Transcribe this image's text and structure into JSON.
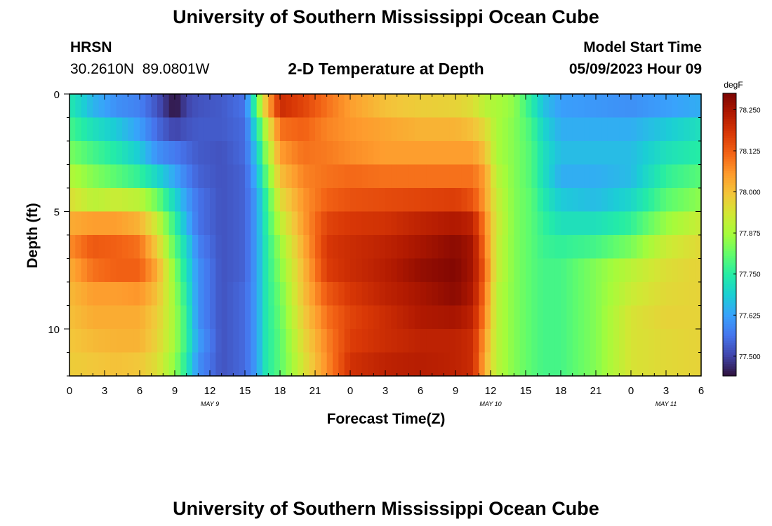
{
  "header": {
    "title": "University of Southern Mississippi Ocean Cube",
    "station": "HRSN",
    "coordinates": "30.2610N  89.0801W",
    "chart_title": "2-D Temperature at Depth",
    "model_label": "Model Start Time",
    "model_time": "05/09/2023 Hour 09"
  },
  "footer": {
    "title": "University of Southern Mississippi Ocean Cube"
  },
  "colors": {
    "scale": [
      "#30123b",
      "#4145ab",
      "#4675ed",
      "#39a2fc",
      "#1bcfd4",
      "#24eca6",
      "#61fc6c",
      "#a4fc3b",
      "#d1e834",
      "#f3c63a",
      "#fe9b2d",
      "#f36315",
      "#d93806",
      "#b11901",
      "#7a0402"
    ]
  },
  "chart_data": {
    "type": "heatmap",
    "title": "2-D Temperature at Depth",
    "xlabel": "Forecast Time(Z)",
    "ylabel": "Depth (ft)",
    "x_tick_labels": [
      "0",
      "3",
      "6",
      "9",
      "12",
      "15",
      "18",
      "21",
      "0",
      "3",
      "6",
      "9",
      "12",
      "15",
      "18",
      "21",
      "0",
      "3",
      "6"
    ],
    "date_labels": [
      {
        "label": "MAY 9",
        "hour": 12
      },
      {
        "label": "MAY 10",
        "hour": 36
      },
      {
        "label": "MAY 11",
        "hour": 51
      }
    ],
    "x_range_hours": [
      0,
      54
    ],
    "y_ticks": [
      0,
      5,
      10
    ],
    "y_range_ft": [
      0,
      12
    ],
    "colorbar": {
      "unit": "degF",
      "labels": [
        "78.250",
        "78.125",
        "78.000",
        "77.875",
        "77.750",
        "77.625",
        "77.500"
      ],
      "range": [
        77.44,
        78.3
      ]
    },
    "depths_ft": [
      0,
      1,
      2,
      3,
      4,
      5,
      6,
      7,
      8,
      9,
      10,
      11
    ],
    "time_keys": [
      {
        "t": 0,
        "values": [
          77.74,
          77.78,
          77.83,
          77.89,
          77.95,
          78.03,
          78.07,
          78.03,
          78.01,
          78.0,
          77.99,
          77.98
        ]
      },
      {
        "t": 2,
        "values": [
          77.65,
          77.72,
          77.78,
          77.84,
          77.9,
          78.05,
          78.13,
          78.1,
          78.05,
          78.03,
          78.01,
          77.99
        ]
      },
      {
        "t": 4,
        "values": [
          77.6,
          77.68,
          77.74,
          77.8,
          77.92,
          78.05,
          78.12,
          78.12,
          78.05,
          78.03,
          78.02,
          78.0
        ]
      },
      {
        "t": 6,
        "values": [
          77.58,
          77.62,
          77.68,
          77.76,
          77.9,
          78.02,
          78.1,
          78.12,
          78.06,
          78.03,
          78.02,
          77.99
        ]
      },
      {
        "t": 7.5,
        "values": [
          77.52,
          77.55,
          77.6,
          77.7,
          77.82,
          77.92,
          77.98,
          78.03,
          78.0,
          77.98,
          77.97,
          77.95
        ]
      },
      {
        "t": 9,
        "values": [
          77.44,
          77.5,
          77.57,
          77.63,
          77.7,
          77.76,
          77.8,
          77.84,
          77.86,
          77.87,
          77.87,
          77.85
        ]
      },
      {
        "t": 10,
        "values": [
          77.5,
          77.52,
          77.55,
          77.58,
          77.62,
          77.65,
          77.7,
          77.72,
          77.74,
          77.76,
          77.76,
          77.74
        ]
      },
      {
        "t": 11,
        "values": [
          77.52,
          77.53,
          77.53,
          77.54,
          77.56,
          77.56,
          77.58,
          77.6,
          77.6,
          77.6,
          77.62,
          77.6
        ]
      },
      {
        "t": 13,
        "values": [
          77.53,
          77.53,
          77.52,
          77.52,
          77.52,
          77.52,
          77.52,
          77.52,
          77.52,
          77.52,
          77.52,
          77.52
        ]
      },
      {
        "t": 15,
        "values": [
          77.56,
          77.55,
          77.55,
          77.54,
          77.54,
          77.54,
          77.54,
          77.54,
          77.55,
          77.55,
          77.55,
          77.55
        ]
      },
      {
        "t": 16,
        "values": [
          77.8,
          77.72,
          77.68,
          77.65,
          77.62,
          77.62,
          77.62,
          77.62,
          77.62,
          77.62,
          77.62,
          77.62
        ]
      },
      {
        "t": 16.8,
        "values": [
          78.0,
          77.9,
          77.85,
          77.8,
          77.76,
          77.75,
          77.74,
          77.74,
          77.74,
          77.74,
          77.74,
          77.74
        ]
      },
      {
        "t": 18,
        "values": [
          78.2,
          78.1,
          78.05,
          78.0,
          77.95,
          77.9,
          77.86,
          77.84,
          77.82,
          77.81,
          77.8,
          77.8
        ]
      },
      {
        "t": 20,
        "values": [
          78.16,
          78.12,
          78.1,
          78.08,
          78.06,
          78.05,
          78.03,
          78.01,
          78.0,
          77.98,
          77.96,
          77.94
        ]
      },
      {
        "t": 22,
        "values": [
          78.1,
          78.08,
          78.09,
          78.1,
          78.12,
          78.16,
          78.18,
          78.17,
          78.13,
          78.1,
          78.08,
          78.07
        ]
      },
      {
        "t": 24,
        "values": [
          78.05,
          78.06,
          78.07,
          78.11,
          78.14,
          78.18,
          78.2,
          78.2,
          78.18,
          78.16,
          78.17,
          78.19
        ]
      },
      {
        "t": 27,
        "values": [
          78.0,
          78.04,
          78.05,
          78.1,
          78.15,
          78.19,
          78.22,
          78.23,
          78.22,
          78.2,
          78.2,
          78.22
        ]
      },
      {
        "t": 30,
        "values": [
          77.98,
          78.02,
          78.05,
          78.1,
          78.16,
          78.22,
          78.25,
          78.27,
          78.25,
          78.24,
          78.22,
          78.23
        ]
      },
      {
        "t": 33,
        "values": [
          77.97,
          78.02,
          78.05,
          78.1,
          78.17,
          78.24,
          78.28,
          78.29,
          78.28,
          78.25,
          78.22,
          78.22
        ]
      },
      {
        "t": 34.5,
        "values": [
          77.95,
          78.0,
          78.05,
          78.1,
          78.14,
          78.22,
          78.25,
          78.25,
          78.24,
          78.22,
          78.2,
          78.2
        ]
      },
      {
        "t": 35.5,
        "values": [
          77.9,
          77.96,
          78.0,
          78.05,
          78.05,
          78.08,
          78.1,
          78.12,
          78.1,
          78.08,
          78.05,
          78.03
        ]
      },
      {
        "t": 36.5,
        "values": [
          77.88,
          77.88,
          77.88,
          77.9,
          77.92,
          77.93,
          77.92,
          77.92,
          77.9,
          77.9,
          77.9,
          77.9
        ]
      },
      {
        "t": 38,
        "values": [
          77.85,
          77.84,
          77.84,
          77.84,
          77.84,
          77.84,
          77.84,
          77.84,
          77.84,
          77.84,
          77.84,
          77.84
        ]
      },
      {
        "t": 39.5,
        "values": [
          77.75,
          77.78,
          77.79,
          77.79,
          77.8,
          77.8,
          77.8,
          77.8,
          77.8,
          77.8,
          77.8,
          77.8
        ]
      },
      {
        "t": 40.5,
        "values": [
          77.67,
          77.7,
          77.72,
          77.72,
          77.74,
          77.76,
          77.77,
          77.78,
          77.78,
          77.78,
          77.78,
          77.78
        ]
      },
      {
        "t": 42,
        "values": [
          77.62,
          77.64,
          77.66,
          77.64,
          77.68,
          77.72,
          77.76,
          77.78,
          77.78,
          77.78,
          77.78,
          77.78
        ]
      },
      {
        "t": 45,
        "values": [
          77.61,
          77.64,
          77.66,
          77.64,
          77.66,
          77.72,
          77.78,
          77.84,
          77.84,
          77.84,
          77.84,
          77.84
        ]
      },
      {
        "t": 48,
        "values": [
          77.6,
          77.64,
          77.66,
          77.66,
          77.7,
          77.76,
          77.83,
          77.9,
          77.92,
          77.94,
          77.94,
          77.94
        ]
      },
      {
        "t": 51,
        "values": [
          77.62,
          77.68,
          77.72,
          77.76,
          77.8,
          77.86,
          77.92,
          77.95,
          77.96,
          77.97,
          77.96,
          77.96
        ]
      },
      {
        "t": 54,
        "values": [
          77.64,
          77.72,
          77.75,
          77.8,
          77.85,
          77.92,
          77.96,
          77.97,
          77.97,
          77.97,
          77.97,
          77.97
        ]
      }
    ]
  }
}
